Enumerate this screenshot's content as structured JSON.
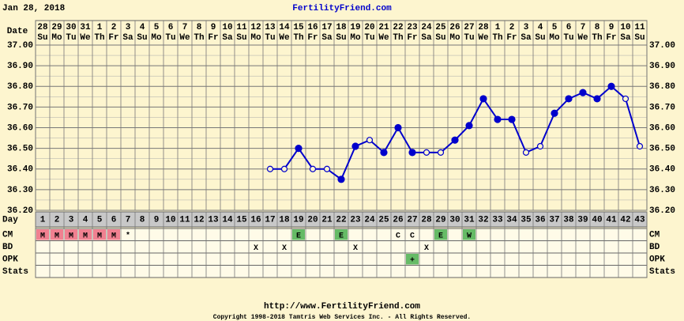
{
  "chart_data": {
    "type": "line",
    "title": "Jan 28, 2018",
    "site": "FertilityFriend.com",
    "footer_url": "http://www.FertilityFriend.com",
    "copyright": "Copyright 1998-2018 Tamtris Web Services Inc. - All Rights Reserved.",
    "date_label": "Date",
    "dates": [
      28,
      29,
      30,
      31,
      1,
      2,
      3,
      4,
      5,
      6,
      7,
      8,
      9,
      10,
      11,
      12,
      13,
      14,
      15,
      16,
      17,
      18,
      19,
      20,
      21,
      22,
      23,
      24,
      25,
      26,
      27,
      28,
      1,
      2,
      3,
      4,
      5,
      6,
      7,
      8,
      9,
      10,
      11
    ],
    "weekdays": [
      "Su",
      "Mo",
      "Tu",
      "We",
      "Th",
      "Fr",
      "Sa",
      "Su",
      "Mo",
      "Tu",
      "We",
      "Th",
      "Fr",
      "Sa",
      "Su",
      "Mo",
      "Tu",
      "We",
      "Th",
      "Fr",
      "Sa",
      "Su",
      "Mo",
      "Tu",
      "We",
      "Th",
      "Fr",
      "Sa",
      "Su",
      "Mo",
      "Tu",
      "We",
      "Th",
      "Fr",
      "Sa",
      "Su",
      "Mo",
      "Tu",
      "We",
      "Th",
      "Fr",
      "Sa",
      "Su"
    ],
    "day_label": "Day",
    "categories": [
      1,
      2,
      3,
      4,
      5,
      6,
      7,
      8,
      9,
      10,
      11,
      12,
      13,
      14,
      15,
      16,
      17,
      18,
      19,
      20,
      21,
      22,
      23,
      24,
      25,
      26,
      27,
      28,
      29,
      30,
      31,
      32,
      33,
      34,
      35,
      36,
      37,
      38,
      39,
      40,
      41,
      42,
      43
    ],
    "series": [
      {
        "name": "Temperature",
        "color": "#0000cc",
        "values": [
          null,
          null,
          null,
          null,
          null,
          null,
          null,
          null,
          null,
          null,
          null,
          null,
          null,
          null,
          null,
          null,
          36.4,
          36.4,
          36.5,
          36.4,
          36.4,
          36.35,
          36.51,
          36.54,
          36.48,
          36.6,
          36.48,
          36.48,
          36.48,
          36.54,
          36.61,
          36.74,
          36.64,
          36.64,
          36.48,
          36.51,
          36.67,
          36.74,
          36.77,
          36.74,
          36.8,
          36.74,
          36.51
        ],
        "open": [
          false,
          false,
          false,
          false,
          false,
          false,
          false,
          false,
          false,
          false,
          false,
          false,
          false,
          false,
          false,
          false,
          true,
          true,
          false,
          true,
          true,
          false,
          false,
          true,
          false,
          false,
          false,
          true,
          true,
          false,
          false,
          false,
          false,
          false,
          true,
          true,
          false,
          false,
          false,
          false,
          false,
          true,
          true
        ]
      }
    ],
    "ylim": [
      36.2,
      37.0
    ],
    "yticks": [
      {
        "value": 36.2,
        "label": "36.20"
      },
      {
        "value": 36.3,
        "label": "36.30"
      },
      {
        "value": 36.4,
        "label": "36.40"
      },
      {
        "value": 36.5,
        "label": "36.50"
      },
      {
        "value": 36.6,
        "label": "36.60"
      },
      {
        "value": 36.7,
        "label": "36.70"
      },
      {
        "value": 36.8,
        "label": "36.80"
      },
      {
        "value": 36.9,
        "label": "36.90"
      },
      {
        "value": 37.0,
        "label": "37.00"
      }
    ],
    "grid": true,
    "rows": [
      {
        "name": "CM",
        "entries": [
          {
            "day": 1,
            "label": "M",
            "color": "#f08090"
          },
          {
            "day": 2,
            "label": "M",
            "color": "#f08090"
          },
          {
            "day": 3,
            "label": "M",
            "color": "#f08090"
          },
          {
            "day": 4,
            "label": "M",
            "color": "#f08090"
          },
          {
            "day": 5,
            "label": "M",
            "color": "#f08090"
          },
          {
            "day": 6,
            "label": "M",
            "color": "#f08090"
          },
          {
            "day": 7,
            "label": "*",
            "color": null
          },
          {
            "day": 19,
            "label": "E",
            "color": "#66bb66"
          },
          {
            "day": 22,
            "label": "E",
            "color": "#66bb66"
          },
          {
            "day": 26,
            "label": "C",
            "color": null
          },
          {
            "day": 27,
            "label": "C",
            "color": null
          },
          {
            "day": 29,
            "label": "E",
            "color": "#66bb66"
          },
          {
            "day": 31,
            "label": "W",
            "color": "#66bb66"
          }
        ]
      },
      {
        "name": "BD",
        "entries": [
          {
            "day": 16,
            "label": "X",
            "color": null
          },
          {
            "day": 18,
            "label": "X",
            "color": null
          },
          {
            "day": 23,
            "label": "X",
            "color": null
          },
          {
            "day": 28,
            "label": "X",
            "color": null
          }
        ]
      },
      {
        "name": "OPK",
        "entries": [
          {
            "day": 27,
            "label": "+",
            "color": "#66bb66"
          }
        ]
      },
      {
        "name": "Stats",
        "entries": []
      }
    ]
  }
}
